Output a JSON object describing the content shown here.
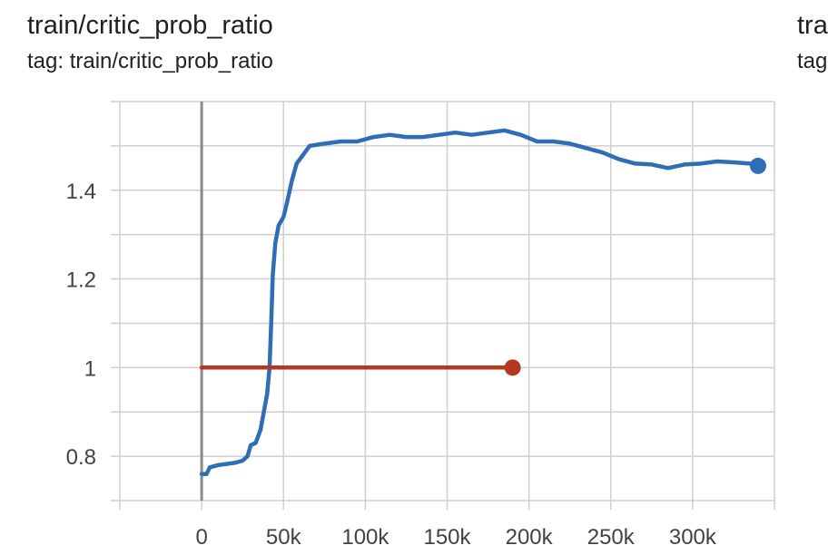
{
  "card": {
    "title": "train/critic_prob_ratio",
    "tag": "tag: train/critic_prob_ratio"
  },
  "next_card": {
    "title": "tra",
    "tag": "tag"
  },
  "chart_data": {
    "type": "line",
    "title": "train/critic_prob_ratio",
    "xlabel": "",
    "ylabel": "",
    "xlim": [
      -50000,
      350000
    ],
    "ylim": [
      0.7,
      1.6
    ],
    "x_ticks": [
      0,
      50000,
      100000,
      150000,
      200000,
      250000,
      300000
    ],
    "x_tick_labels": [
      "0",
      "50k",
      "100k",
      "150k",
      "200k",
      "250k",
      "300k"
    ],
    "y_ticks": [
      0.8,
      1.0,
      1.2,
      1.4
    ],
    "y_tick_labels": [
      "0.8",
      "1",
      "1.2",
      "1.4"
    ],
    "grid": true,
    "series": [
      {
        "color": "#2f6db5",
        "points": [
          [
            0,
            0.76
          ],
          [
            3000,
            0.76
          ],
          [
            5000,
            0.775
          ],
          [
            10000,
            0.78
          ],
          [
            20000,
            0.785
          ],
          [
            25000,
            0.79
          ],
          [
            28000,
            0.8
          ],
          [
            30000,
            0.825
          ],
          [
            33000,
            0.83
          ],
          [
            36000,
            0.86
          ],
          [
            38000,
            0.9
          ],
          [
            40000,
            0.94
          ],
          [
            41500,
            1.0
          ],
          [
            42500,
            1.1
          ],
          [
            43500,
            1.21
          ],
          [
            45000,
            1.28
          ],
          [
            47000,
            1.32
          ],
          [
            50000,
            1.34
          ],
          [
            52000,
            1.37
          ],
          [
            55000,
            1.42
          ],
          [
            58000,
            1.46
          ],
          [
            62000,
            1.48
          ],
          [
            66000,
            1.5
          ],
          [
            75000,
            1.505
          ],
          [
            85000,
            1.51
          ],
          [
            95000,
            1.51
          ],
          [
            105000,
            1.52
          ],
          [
            115000,
            1.525
          ],
          [
            125000,
            1.52
          ],
          [
            135000,
            1.52
          ],
          [
            145000,
            1.525
          ],
          [
            155000,
            1.53
          ],
          [
            165000,
            1.525
          ],
          [
            175000,
            1.53
          ],
          [
            185000,
            1.535
          ],
          [
            195000,
            1.525
          ],
          [
            205000,
            1.51
          ],
          [
            215000,
            1.51
          ],
          [
            225000,
            1.505
          ],
          [
            235000,
            1.495
          ],
          [
            245000,
            1.485
          ],
          [
            255000,
            1.47
          ],
          [
            265000,
            1.46
          ],
          [
            275000,
            1.458
          ],
          [
            285000,
            1.45
          ],
          [
            295000,
            1.458
          ],
          [
            305000,
            1.46
          ],
          [
            315000,
            1.465
          ],
          [
            325000,
            1.463
          ],
          [
            335000,
            1.46
          ],
          [
            340000,
            1.455
          ]
        ]
      },
      {
        "color": "#b5391f",
        "points": [
          [
            0,
            1.0
          ],
          [
            190000,
            1.0
          ]
        ]
      }
    ]
  }
}
